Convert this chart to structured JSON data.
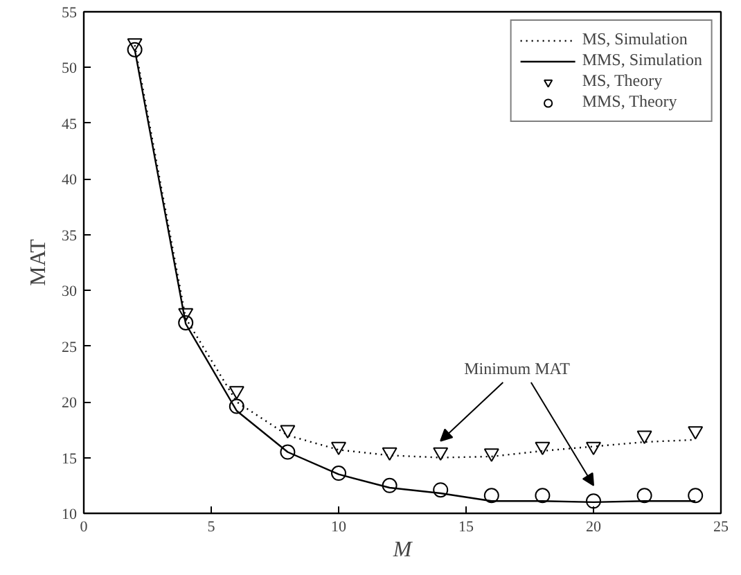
{
  "chart_data": {
    "type": "line",
    "xlabel": "M",
    "ylabel": "MAT",
    "x": [
      2,
      4,
      6,
      8,
      10,
      12,
      14,
      16,
      18,
      20,
      22,
      24
    ],
    "series": [
      {
        "name": "MS, Simulation",
        "color": "#000000",
        "line_style": "dotted",
        "marker": "none",
        "values": [
          52.0,
          27.5,
          20.0,
          17.0,
          15.7,
          15.2,
          15.0,
          15.1,
          15.6,
          16.0,
          16.4,
          16.6
        ]
      },
      {
        "name": "MMS, Simulation",
        "color": "#000000",
        "line_style": "solid",
        "marker": "none",
        "values": [
          51.6,
          27.0,
          19.2,
          15.5,
          13.5,
          12.3,
          11.8,
          11.1,
          11.1,
          11.0,
          11.1,
          11.1
        ]
      },
      {
        "name": "MS, Theory",
        "color": "#000000",
        "type": "scatter",
        "marker": "triangle",
        "values": [
          52.2,
          28.0,
          21.0,
          17.5,
          16.0,
          15.5,
          15.5,
          15.4,
          16.0,
          16.0,
          17.0,
          17.4
        ]
      },
      {
        "name": "MMS, Theory",
        "color": "#000000",
        "type": "scatter",
        "marker": "circle",
        "values": [
          51.6,
          27.1,
          19.6,
          15.5,
          13.6,
          12.5,
          12.1,
          11.6,
          11.6,
          11.1,
          11.6,
          11.6
        ]
      }
    ],
    "annotations": [
      "Minimum MAT"
    ],
    "xlim": [
      0,
      25
    ],
    "xticks": [
      0,
      5,
      10,
      15,
      20,
      25
    ],
    "ylim": [
      10,
      55
    ],
    "yticks": [
      10,
      15,
      20,
      25,
      30,
      35,
      40,
      45,
      50,
      55
    ],
    "grid": false,
    "legend": "top right"
  }
}
